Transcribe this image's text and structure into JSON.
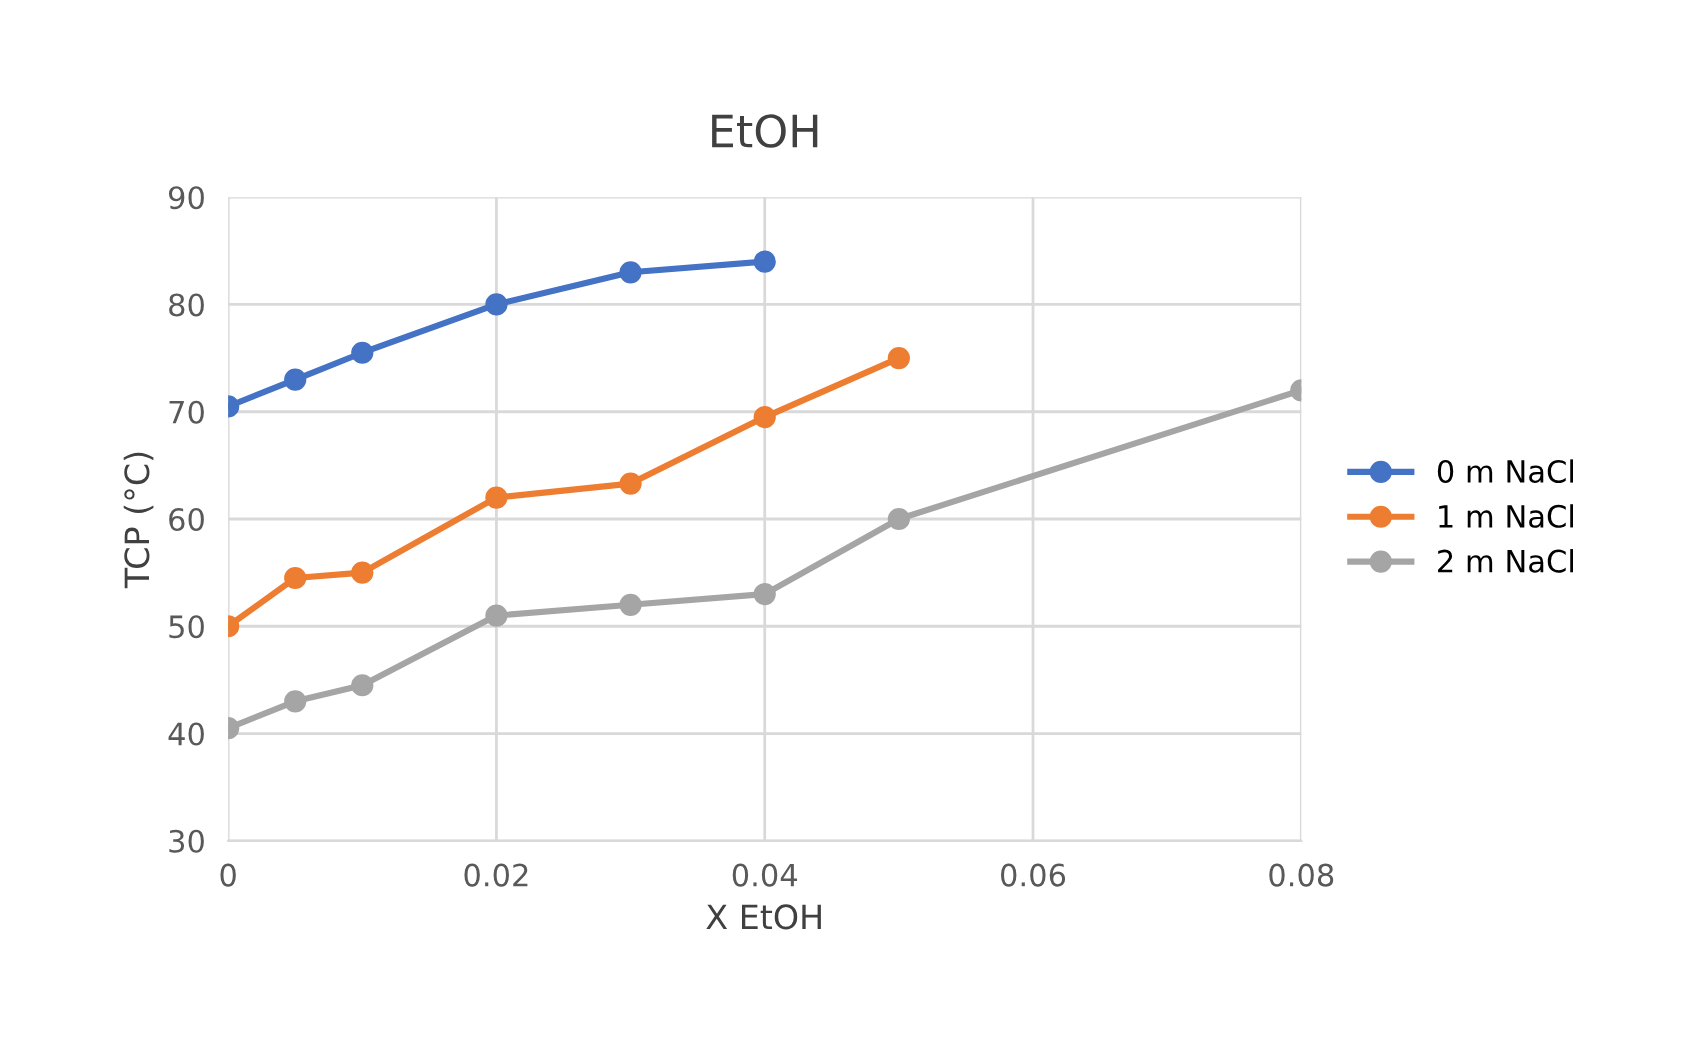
{
  "chart_data": {
    "type": "line",
    "title": "EtOH",
    "xlabel": "X EtOH",
    "ylabel": "TCP (°C)",
    "xlim": [
      0,
      0.08
    ],
    "xticks": [
      0,
      0.02,
      0.04,
      0.06,
      0.08
    ],
    "ylim": [
      30,
      90
    ],
    "yticks": [
      30,
      40,
      50,
      60,
      70,
      80,
      90
    ],
    "grid": true,
    "legend": "right",
    "marker": "circle",
    "line_style": "solid",
    "series": [
      {
        "name": "0 m NaCl",
        "color": "#4472c4",
        "x": [
          0,
          0.005,
          0.01,
          0.02,
          0.03,
          0.04
        ],
        "values": [
          70.5,
          73,
          75.5,
          80,
          83,
          84
        ]
      },
      {
        "name": "1 m NaCl",
        "color": "#ed7d31",
        "x": [
          0,
          0.005,
          0.01,
          0.02,
          0.03,
          0.04,
          0.05
        ],
        "values": [
          50,
          54.5,
          55,
          62,
          63.3,
          69.5,
          75
        ]
      },
      {
        "name": "2 m NaCl",
        "color": "#a5a5a5",
        "x": [
          0,
          0.005,
          0.01,
          0.02,
          0.03,
          0.04,
          0.05,
          0.08
        ],
        "values": [
          40.5,
          43,
          44.5,
          51,
          52,
          53,
          60,
          72
        ]
      }
    ]
  }
}
